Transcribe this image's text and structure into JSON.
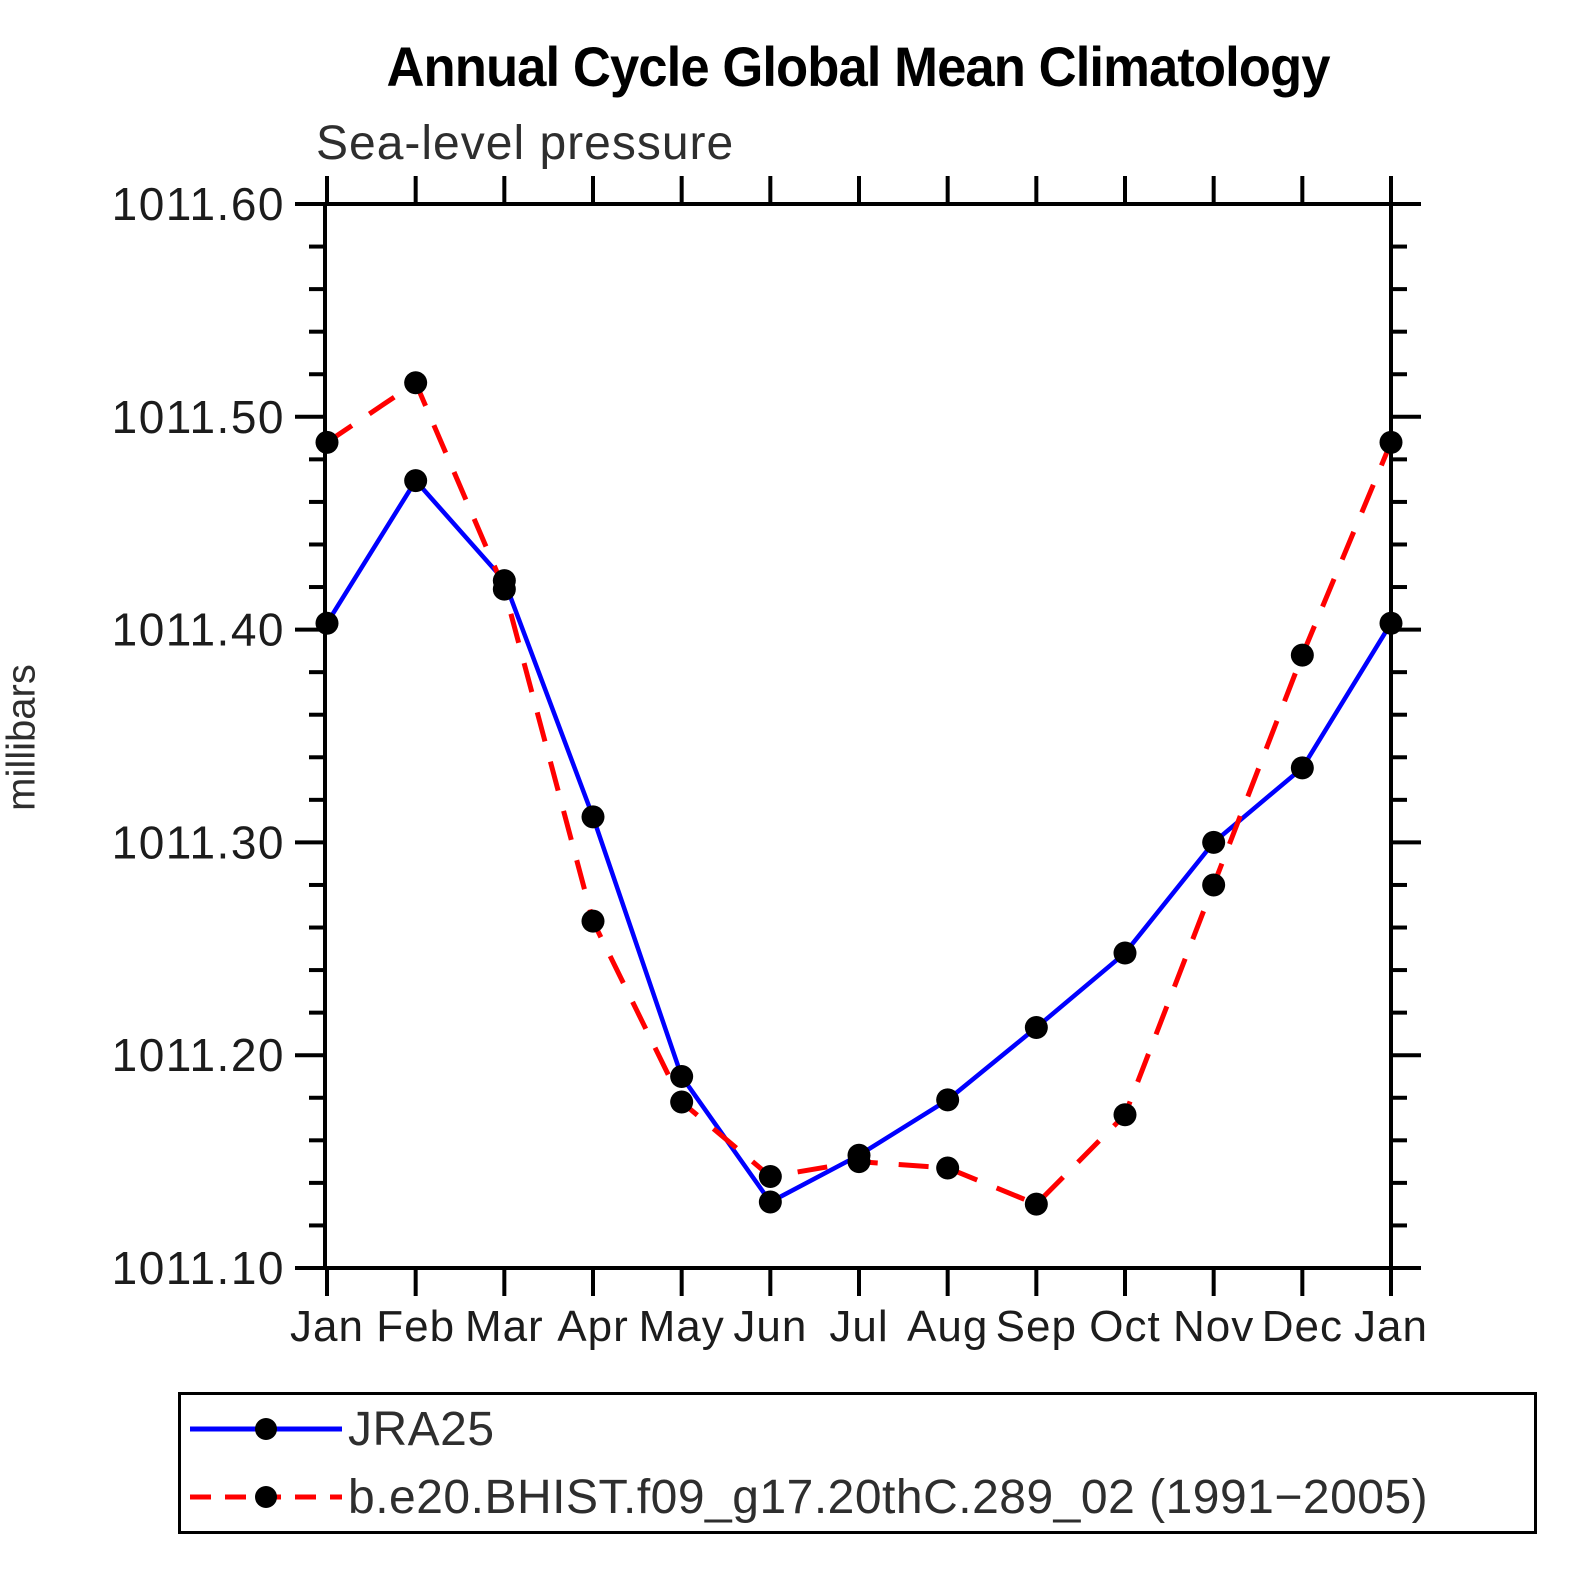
{
  "title": "Annual Cycle Global Mean Climatology",
  "subtitle": "Sea-level pressure",
  "ylabel": "millibars",
  "colors": {
    "axis": "#000000",
    "marker": "#000000",
    "series1": "#0000ff",
    "series2": "#ff0000",
    "text": "#2e2e2e"
  },
  "legend": {
    "items": [
      {
        "label": "JRA25",
        "color": "#0000ff",
        "style": "solid"
      },
      {
        "label": "b.e20.BHIST.f09_g17.20thC.289_02 (1991−2005)",
        "color": "#ff0000",
        "style": "dashed"
      }
    ]
  },
  "chart_data": {
    "type": "line",
    "title": "Annual Cycle Global Mean Climatology",
    "subtitle": "Sea-level pressure",
    "xlabel": "",
    "ylabel": "millibars",
    "categories": [
      "Jan",
      "Feb",
      "Mar",
      "Apr",
      "May",
      "Jun",
      "Jul",
      "Aug",
      "Sep",
      "Oct",
      "Nov",
      "Dec",
      "Jan"
    ],
    "series": [
      {
        "name": "JRA25",
        "color": "#0000ff",
        "line_style": "solid",
        "marker": "filled-circle",
        "marker_color": "#000000",
        "values": [
          1011.403,
          1011.47,
          1011.423,
          1011.312,
          1011.19,
          1011.131,
          1011.153,
          1011.179,
          1011.213,
          1011.248,
          1011.3,
          1011.335,
          1011.403
        ]
      },
      {
        "name": "b.e20.BHIST.f09_g17.20thC.289_02 (1991−2005)",
        "color": "#ff0000",
        "line_style": "dashed",
        "marker": "filled-circle",
        "marker_color": "#000000",
        "values": [
          1011.488,
          1011.516,
          1011.419,
          1011.263,
          1011.178,
          1011.143,
          1011.15,
          1011.147,
          1011.13,
          1011.172,
          1011.28,
          1011.388,
          1011.488
        ]
      }
    ],
    "ylim": [
      1011.1,
      1011.6
    ],
    "yticks": [
      1011.1,
      1011.2,
      1011.3,
      1011.4,
      1011.5,
      1011.6
    ],
    "ytick_minor_step": 0.02,
    "grid": "off",
    "legend_position": "below-left-box"
  }
}
